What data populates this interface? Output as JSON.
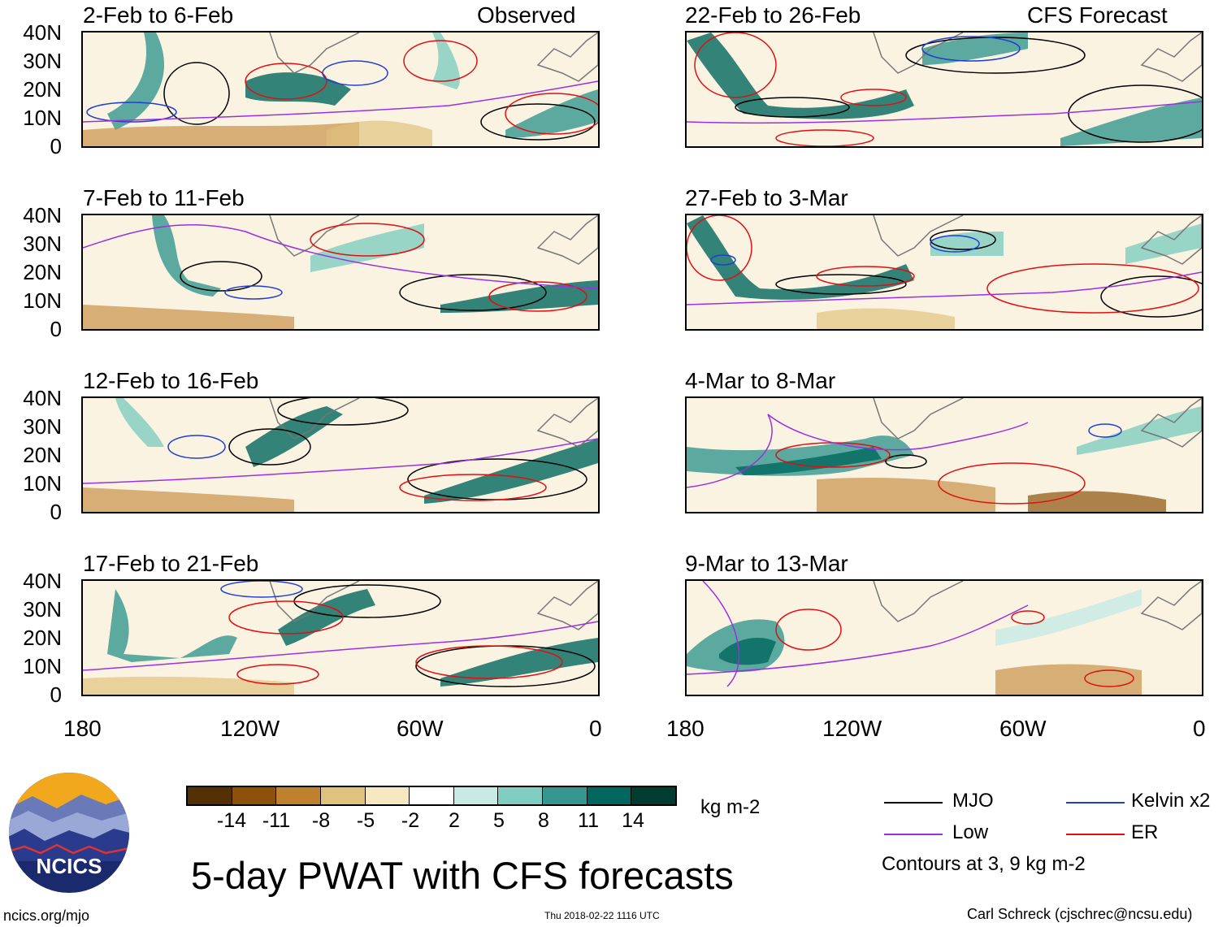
{
  "lat_labels": [
    "40N",
    "30N",
    "20N",
    "10N",
    "0"
  ],
  "lon_labels": [
    "180",
    "120W",
    "60W",
    "0"
  ],
  "left_header": "Observed",
  "right_header": "CFS Forecast",
  "panels": [
    {
      "title": "2-Feb to 6-Feb"
    },
    {
      "title": "7-Feb to 11-Feb"
    },
    {
      "title": "12-Feb to 16-Feb"
    },
    {
      "title": "17-Feb to 21-Feb"
    },
    {
      "title": "22-Feb to 26-Feb"
    },
    {
      "title": "27-Feb to 3-Mar"
    },
    {
      "title": "4-Mar to 8-Mar"
    },
    {
      "title": "9-Mar to 13-Mar"
    }
  ],
  "colorbar": {
    "labels": [
      "-14",
      "-11",
      "-8",
      "-5",
      "-2",
      "2",
      "5",
      "8",
      "11",
      "14"
    ],
    "colors": [
      "#543005",
      "#8c510a",
      "#bf812d",
      "#dfc27d",
      "#f6e8c3",
      "#ffffff",
      "#c7eae5",
      "#80cdc1",
      "#35978f",
      "#01665e",
      "#003c30"
    ],
    "units": "kg m-2"
  },
  "legend": {
    "mjo": "MJO",
    "mjo_color": "#000000",
    "kelvin": "Kelvin x2",
    "kelvin_color": "#1f3fd0",
    "low": "Low",
    "low_color": "#9b30e0",
    "er": "ER",
    "er_color": "#e01010",
    "note": "Contours at 3, 9 kg m-2"
  },
  "footer": {
    "main_title": "5-day PWAT with CFS forecasts",
    "site": "ncics.org/mjo",
    "timestamp": "Thu 2018-02-22 1116 UTC",
    "author": "Carl Schreck (cjschrec@ncsu.edu)",
    "logo_text": "NCICS"
  }
}
